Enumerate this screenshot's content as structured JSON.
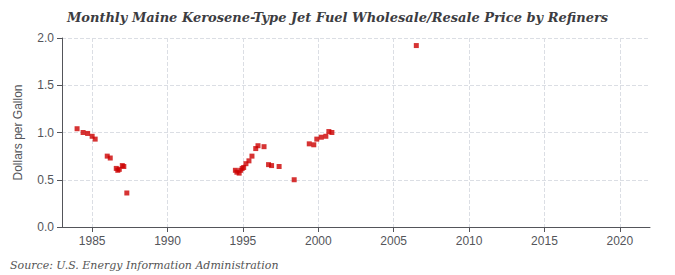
{
  "chart_data": {
    "type": "scatter",
    "title": "Monthly Maine Kerosene-Type Jet Fuel Wholesale/Resale Price by Refiners",
    "ylabel": "Dollars per Gallon",
    "annotations": [
      "Source: U.S. Energy Information Administration"
    ],
    "color": "#cc0000",
    "marker": "square",
    "grid": true,
    "xlim": [
      1983,
      2022
    ],
    "ylim": [
      0.0,
      2.0
    ],
    "xticks": [
      1985,
      1990,
      1995,
      2000,
      2005,
      2010,
      2015,
      2020
    ],
    "yticks": [
      {
        "value": 0.0,
        "label": "0.0"
      },
      {
        "value": 0.5,
        "label": "0.5"
      },
      {
        "value": 1.0,
        "label": "1.0"
      },
      {
        "value": 1.5,
        "label": "1.5"
      },
      {
        "value": 2.0,
        "label": "2.0"
      }
    ],
    "x": [
      1984.0,
      1984.4,
      1984.7,
      1985.0,
      1985.2,
      1986.0,
      1986.2,
      1986.6,
      1986.7,
      1986.8,
      1987.0,
      1987.1,
      1987.3,
      1994.5,
      1994.6,
      1994.75,
      1994.85,
      1994.95,
      1995.05,
      1995.2,
      1995.4,
      1995.6,
      1995.85,
      1996.0,
      1996.4,
      1996.7,
      1996.9,
      1997.4,
      1998.4,
      1999.4,
      1999.7,
      1999.9,
      2000.2,
      2000.5,
      2000.7,
      2000.9,
      2006.5
    ],
    "values": [
      1.04,
      1.0,
      0.99,
      0.96,
      0.93,
      0.75,
      0.73,
      0.62,
      0.6,
      0.61,
      0.65,
      0.64,
      0.36,
      0.6,
      0.58,
      0.57,
      0.6,
      0.62,
      0.63,
      0.67,
      0.7,
      0.75,
      0.83,
      0.86,
      0.85,
      0.66,
      0.65,
      0.64,
      0.5,
      0.88,
      0.87,
      0.93,
      0.95,
      0.96,
      1.01,
      1.0,
      1.92
    ]
  }
}
